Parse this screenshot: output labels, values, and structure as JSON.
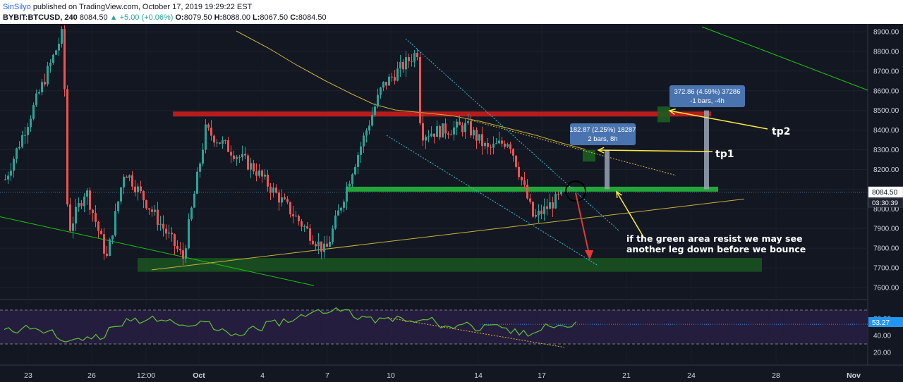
{
  "header": {
    "author": "SinSilyo",
    "published": "published on TradingView.com, October 17, 2019 19:29:22 EST",
    "symbol": "BYBIT:BTCUSD, 240",
    "price": "8084.50",
    "change_arrow": "▲",
    "change": "+5.00 (+0.06%)",
    "o_label": "O:",
    "o_value": "8079.50",
    "h_label": "H:",
    "h_value": "8088.00",
    "l_label": "L:",
    "l_value": "8067.50",
    "c_label": "C:",
    "c_value": "8084.50"
  },
  "colors": {
    "background": "#131722",
    "up_candle": "#26a69a",
    "down_candle": "#ef5350",
    "resistance_zone": "#b71c1c",
    "support_zone": "#1b5e20",
    "green_line": "#16c60c",
    "ma_line": "#c9b23a",
    "rsi_line": "#5ec236",
    "rsi_band": "#2a1f45",
    "annotation": "#ffeb3b",
    "measure_box": "#4a74b0"
  },
  "chart_data": [
    {
      "type": "candlestick",
      "title": "",
      "x_ticks": [
        "23",
        "26",
        "12:00",
        "Oct",
        "4",
        "7",
        "10",
        "14",
        "17",
        "21",
        "24",
        "28",
        "Nov"
      ],
      "y_ticks": [
        "8900.00",
        "8800.00",
        "8700.00",
        "8600.00",
        "8500.00",
        "8400.00",
        "8300.00",
        "8200.00",
        "8100.00",
        "8000.00",
        "7900.00",
        "7800.00",
        "7700.00",
        "7600.00"
      ],
      "ylim": [
        7560,
        8960
      ],
      "last_price": "8084.50",
      "countdown": "03:30:39",
      "key_prices": [
        {
          "label": "start",
          "price": 8150
        },
        {
          "label": "high Sep 24",
          "price": 8900
        },
        {
          "label": "low Sep 25",
          "price": 7880
        },
        {
          "label": "Sep 26 range",
          "price": 8100
        },
        {
          "label": "low Sep 27",
          "price": 7750
        },
        {
          "label": "rebound Sep 28",
          "price": 8200
        },
        {
          "label": "low Oct 1",
          "price": 7750
        },
        {
          "label": "high Oct 1",
          "price": 8400
        },
        {
          "label": "Oct 3",
          "price": 8200
        },
        {
          "label": "low Oct 6",
          "price": 7780
        },
        {
          "label": "Oct 8",
          "price": 8200
        },
        {
          "label": "Oct 9 breakout",
          "price": 8620
        },
        {
          "label": "high Oct 11",
          "price": 8800
        },
        {
          "label": "Oct 11 drop",
          "price": 8380
        },
        {
          "label": "Oct 13",
          "price": 8420
        },
        {
          "label": "Oct 14",
          "price": 8300
        },
        {
          "label": "Oct 15",
          "price": 8350
        },
        {
          "label": "low Oct 16",
          "price": 7950
        },
        {
          "label": "last Oct 17",
          "price": 8084.5
        }
      ],
      "zones": [
        {
          "name": "resistance",
          "price": 8480
        },
        {
          "name": "support top",
          "price": 8100
        },
        {
          "name": "lower support",
          "price": 7720
        }
      ],
      "measures": [
        {
          "line1": "182.87 (2.25%) 18287",
          "line2": "2 bars, 8h"
        },
        {
          "line1": "372.86 (4.59%) 37286",
          "line2": "-1 bars, -4h"
        }
      ],
      "annotations": {
        "tp1": "tp1",
        "tp2": "tp2",
        "note_line1": "if the green area resist we may see",
        "note_line2": "another leg down before we bounce"
      }
    },
    {
      "type": "line",
      "title": "",
      "y_ticks": [
        "60.00",
        "40.00",
        "20.00"
      ],
      "ylim": [
        10,
        70
      ],
      "band": [
        30,
        70
      ],
      "current_value": "53.27",
      "values": [
        46,
        50,
        44,
        34,
        36,
        39,
        50,
        58,
        60,
        56,
        50,
        54,
        46,
        42,
        48,
        55,
        58,
        66,
        70,
        69,
        62,
        58,
        60,
        56,
        58,
        50,
        54,
        49,
        50,
        44,
        43,
        52,
        53
      ]
    }
  ]
}
